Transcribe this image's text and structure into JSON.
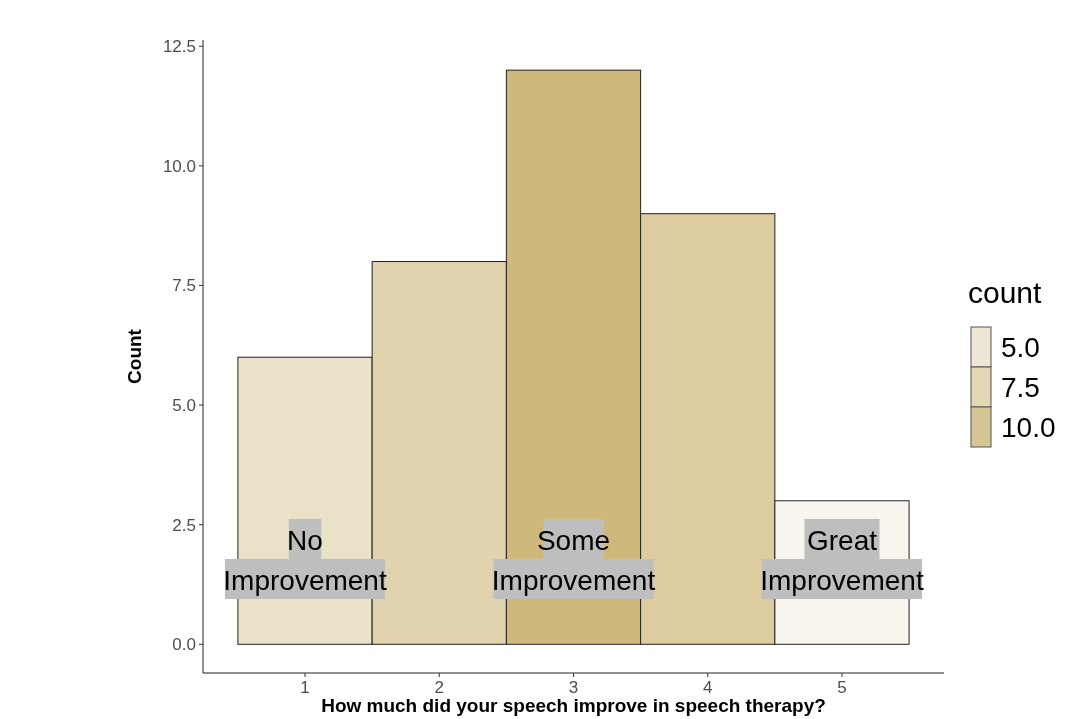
{
  "chart_data": {
    "type": "histogram",
    "xlabel": "How much did your speech improve in speech therapy?",
    "ylabel": "Count",
    "bins": [
      0.5,
      1.5,
      2.5,
      3.5,
      4.5,
      5.5
    ],
    "values": [
      6,
      8,
      12,
      9,
      3
    ],
    "colors": [
      "#eae1c9",
      "#e1d3ae",
      "#ceb87c",
      "#dccc9f",
      "#f7f5ee"
    ],
    "xlim": [
      0.24,
      5.76
    ],
    "xticks": [
      1,
      2,
      3,
      4,
      5
    ],
    "ylim": [
      -0.6,
      12.63
    ],
    "yticks": [
      {
        "value": 0,
        "label": "0.0"
      },
      {
        "value": 2.5,
        "label": "2.5"
      },
      {
        "value": 5,
        "label": "5.0"
      },
      {
        "value": 7.5,
        "label": "7.5"
      },
      {
        "value": 10,
        "label": "10.0"
      },
      {
        "value": 12.5,
        "label": "12.5"
      }
    ],
    "legend_title": "count",
    "cticks": [
      {
        "value": 5,
        "label": "5.0"
      },
      {
        "value": 7.5,
        "label": "7.5"
      },
      {
        "value": 10,
        "label": "10.0"
      }
    ],
    "grid": false,
    "annotations": [
      "No\nImprovement",
      "Some\nImprovement",
      "Great\nImprovement"
    ]
  }
}
